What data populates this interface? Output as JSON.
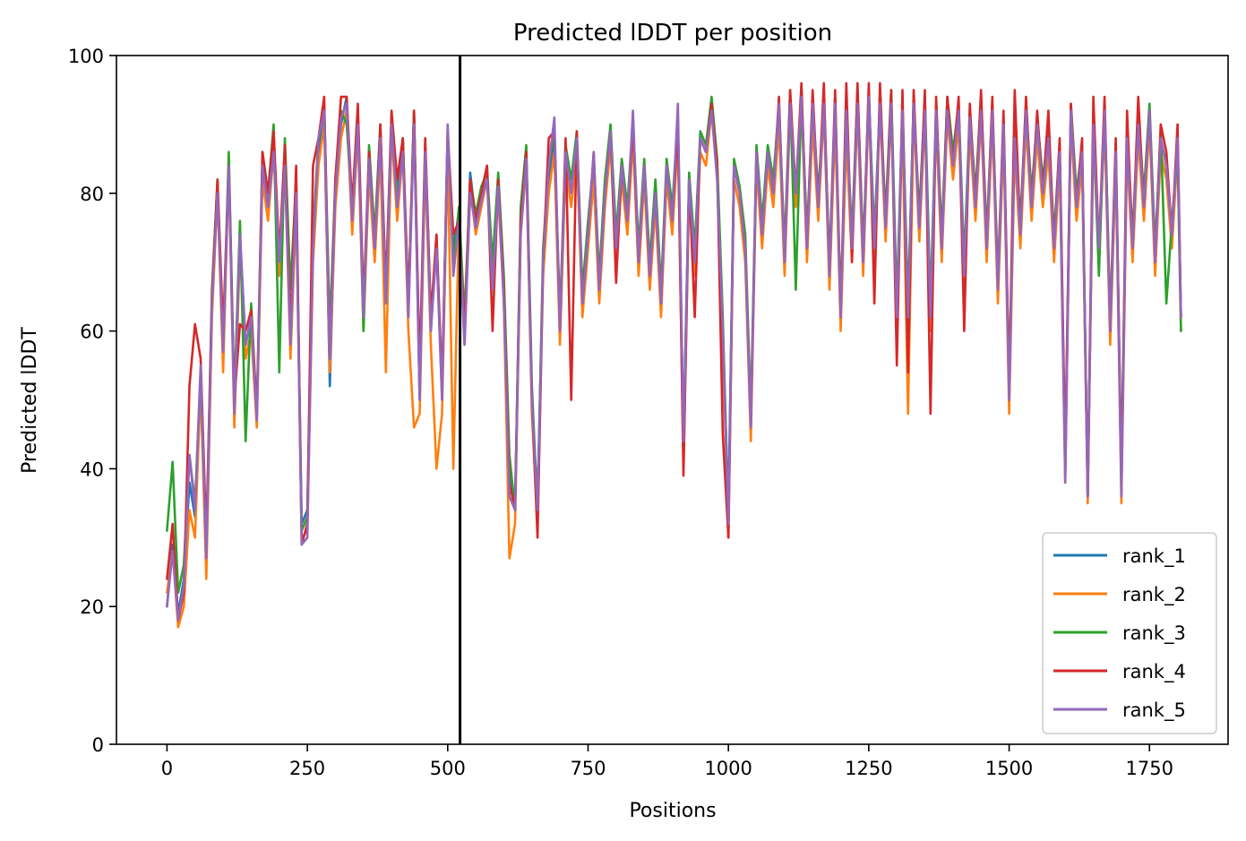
{
  "chart_data": {
    "type": "line",
    "title": "Predicted lDDT per position",
    "xlabel": "Positions",
    "ylabel": "Predicted lDDT",
    "xlim": [
      -90,
      1890
    ],
    "ylim": [
      0,
      100
    ],
    "xticks": [
      0,
      250,
      500,
      750,
      1000,
      1250,
      1500,
      1750
    ],
    "yticks": [
      0,
      20,
      40,
      60,
      80,
      100
    ],
    "grid": false,
    "legend_position": "lower-right",
    "vline_x": 522,
    "x": [
      0,
      10,
      20,
      30,
      40,
      50,
      60,
      70,
      80,
      90,
      100,
      110,
      120,
      130,
      140,
      150,
      160,
      170,
      180,
      190,
      200,
      210,
      220,
      230,
      240,
      250,
      260,
      270,
      280,
      290,
      300,
      310,
      320,
      330,
      340,
      350,
      360,
      370,
      380,
      390,
      400,
      410,
      420,
      430,
      440,
      450,
      460,
      470,
      480,
      490,
      500,
      510,
      520,
      530,
      540,
      550,
      560,
      570,
      580,
      590,
      600,
      610,
      620,
      630,
      640,
      650,
      660,
      670,
      680,
      690,
      700,
      710,
      720,
      730,
      740,
      750,
      760,
      770,
      780,
      790,
      800,
      810,
      820,
      830,
      840,
      850,
      860,
      870,
      880,
      890,
      900,
      910,
      920,
      930,
      940,
      950,
      960,
      970,
      980,
      990,
      1000,
      1010,
      1020,
      1030,
      1040,
      1050,
      1060,
      1070,
      1080,
      1090,
      1100,
      1110,
      1120,
      1130,
      1140,
      1150,
      1160,
      1170,
      1180,
      1190,
      1200,
      1210,
      1220,
      1230,
      1240,
      1250,
      1260,
      1270,
      1280,
      1290,
      1300,
      1310,
      1320,
      1330,
      1340,
      1350,
      1360,
      1370,
      1380,
      1390,
      1400,
      1410,
      1420,
      1430,
      1440,
      1450,
      1460,
      1470,
      1480,
      1490,
      1500,
      1510,
      1520,
      1530,
      1540,
      1550,
      1560,
      1570,
      1580,
      1590,
      1600,
      1610,
      1620,
      1630,
      1640,
      1650,
      1660,
      1670,
      1680,
      1690,
      1700,
      1710,
      1720,
      1730,
      1740,
      1750,
      1760,
      1770,
      1780,
      1790,
      1800,
      1806
    ],
    "series": [
      {
        "name": "rank_1",
        "color": "#1f77b4",
        "values": [
          20,
          29,
          19,
          24,
          38,
          33,
          52,
          26,
          64,
          81,
          56,
          85,
          48,
          74,
          58,
          62,
          47,
          84,
          78,
          88,
          70,
          86,
          58,
          80,
          32,
          34,
          72,
          86,
          92,
          52,
          80,
          90,
          94,
          76,
          91,
          62,
          85,
          72,
          89,
          66,
          91,
          78,
          88,
          62,
          92,
          50,
          86,
          60,
          74,
          50,
          88,
          72,
          77,
          60,
          83,
          76,
          80,
          84,
          68,
          82,
          66,
          40,
          35,
          76,
          86,
          50,
          35,
          70,
          82,
          88,
          60,
          86,
          80,
          88,
          64,
          74,
          84,
          66,
          80,
          89,
          72,
          84,
          76,
          90,
          70,
          84,
          68,
          80,
          64,
          84,
          76,
          90,
          42,
          82,
          70,
          88,
          86,
          93,
          84,
          60,
          34,
          84,
          80,
          72,
          46,
          86,
          74,
          86,
          80,
          92,
          70,
          94,
          80,
          95,
          72,
          92,
          78,
          94,
          68,
          93,
          62,
          90,
          72,
          94,
          70,
          95,
          72,
          94,
          75,
          94,
          62,
          92,
          62,
          94,
          75,
          93,
          62,
          92,
          72,
          93,
          84,
          92,
          68,
          91,
          78,
          93,
          72,
          92,
          66,
          90,
          50,
          88,
          74,
          92,
          78,
          90,
          80,
          88,
          72,
          86,
          40,
          92,
          78,
          86,
          36,
          90,
          72,
          92,
          60,
          86,
          40,
          88,
          72,
          90,
          78,
          92,
          70,
          88,
          84,
          74,
          88,
          62
        ]
      },
      {
        "name": "rank_2",
        "color": "#ff7f0e",
        "values": [
          22,
          28,
          17,
          20,
          34,
          30,
          52,
          24,
          62,
          80,
          54,
          84,
          46,
          72,
          56,
          60,
          46,
          82,
          76,
          86,
          68,
          84,
          56,
          78,
          30,
          31,
          70,
          84,
          90,
          54,
          78,
          88,
          92,
          74,
          89,
          60,
          83,
          70,
          86,
          54,
          89,
          76,
          86,
          60,
          46,
          48,
          84,
          58,
          40,
          48,
          86,
          40,
          76,
          58,
          81,
          74,
          78,
          82,
          66,
          80,
          64,
          27,
          32,
          74,
          84,
          48,
          32,
          68,
          80,
          86,
          58,
          84,
          78,
          86,
          62,
          72,
          82,
          64,
          78,
          87,
          70,
          82,
          74,
          88,
          68,
          82,
          66,
          78,
          62,
          82,
          74,
          88,
          40,
          80,
          68,
          86,
          84,
          92,
          82,
          58,
          30,
          82,
          78,
          70,
          44,
          84,
          72,
          84,
          78,
          90,
          68,
          92,
          78,
          93,
          70,
          90,
          76,
          92,
          66,
          90,
          60,
          88,
          70,
          92,
          68,
          93,
          70,
          92,
          73,
          92,
          60,
          90,
          48,
          92,
          73,
          91,
          60,
          90,
          70,
          91,
          82,
          90,
          66,
          89,
          76,
          91,
          70,
          90,
          64,
          88,
          48,
          86,
          72,
          90,
          76,
          88,
          78,
          86,
          70,
          84,
          38,
          90,
          76,
          84,
          35,
          88,
          70,
          90,
          58,
          84,
          35,
          86,
          70,
          88,
          76,
          90,
          68,
          86,
          82,
          72,
          86,
          60
        ]
      },
      {
        "name": "rank_3",
        "color": "#2ca02c",
        "values": [
          31,
          41,
          22,
          26,
          42,
          35,
          54,
          28,
          66,
          82,
          58,
          86,
          50,
          76,
          44,
          64,
          48,
          86,
          80,
          90,
          54,
          88,
          66,
          82,
          31,
          33,
          74,
          88,
          93,
          60,
          82,
          92,
          90,
          78,
          92,
          60,
          87,
          74,
          90,
          64,
          90,
          80,
          88,
          64,
          92,
          52,
          87,
          62,
          72,
          52,
          89,
          70,
          78,
          62,
          82,
          77,
          81,
          83,
          70,
          83,
          68,
          42,
          34,
          78,
          87,
          52,
          34,
          72,
          84,
          89,
          62,
          87,
          82,
          89,
          66,
          76,
          85,
          68,
          82,
          90,
          74,
          85,
          78,
          91,
          72,
          85,
          70,
          82,
          66,
          85,
          78,
          91,
          44,
          83,
          72,
          89,
          87,
          94,
          85,
          62,
          32,
          85,
          81,
          74,
          48,
          87,
          76,
          87,
          82,
          93,
          72,
          95,
          66,
          94,
          74,
          93,
          80,
          93,
          70,
          94,
          64,
          91,
          74,
          95,
          72,
          94,
          74,
          93,
          77,
          95,
          64,
          93,
          64,
          93,
          77,
          94,
          64,
          93,
          74,
          94,
          86,
          93,
          70,
          92,
          80,
          94,
          74,
          93,
          68,
          91,
          52,
          89,
          76,
          93,
          80,
          91,
          82,
          89,
          74,
          87,
          40,
          93,
          80,
          87,
          36,
          91,
          68,
          93,
          62,
          87,
          38,
          89,
          74,
          91,
          80,
          93,
          72,
          89,
          64,
          76,
          86,
          60
        ]
      },
      {
        "name": "rank_4",
        "color": "#d62728",
        "values": [
          24,
          32,
          18,
          22,
          52,
          61,
          56,
          30,
          65,
          82,
          60,
          84,
          50,
          61,
          60,
          63,
          48,
          86,
          80,
          89,
          71,
          87,
          60,
          84,
          29,
          32,
          84,
          88,
          94,
          56,
          82,
          94,
          94,
          78,
          93,
          64,
          86,
          72,
          90,
          66,
          92,
          82,
          88,
          64,
          92,
          54,
          88,
          62,
          74,
          52,
          89,
          74,
          76,
          60,
          82,
          76,
          80,
          84,
          60,
          82,
          66,
          38,
          34,
          76,
          86,
          50,
          30,
          70,
          88,
          89,
          60,
          88,
          50,
          89,
          64,
          74,
          86,
          66,
          80,
          89,
          67,
          84,
          76,
          90,
          70,
          84,
          68,
          80,
          64,
          84,
          76,
          90,
          39,
          82,
          62,
          88,
          86,
          93,
          84,
          45,
          30,
          84,
          80,
          72,
          46,
          86,
          74,
          86,
          80,
          94,
          70,
          95,
          80,
          96,
          72,
          95,
          78,
          96,
          68,
          95,
          62,
          96,
          70,
          96,
          70,
          96,
          64,
          96,
          75,
          95,
          55,
          95,
          54,
          95,
          75,
          95,
          48,
          94,
          72,
          94,
          84,
          94,
          60,
          93,
          78,
          95,
          72,
          94,
          66,
          92,
          52,
          95,
          74,
          94,
          78,
          92,
          80,
          92,
          72,
          88,
          42,
          93,
          78,
          88,
          36,
          94,
          72,
          94,
          60,
          88,
          38,
          92,
          72,
          94,
          78,
          92,
          70,
          90,
          86,
          74,
          90,
          62
        ]
      },
      {
        "name": "rank_5",
        "color": "#9467bd",
        "values": [
          20,
          28,
          18,
          23,
          42,
          34,
          55,
          27,
          64,
          80,
          57,
          84,
          48,
          74,
          58,
          62,
          47,
          84,
          78,
          86,
          70,
          84,
          58,
          80,
          29,
          30,
          72,
          88,
          92,
          56,
          80,
          91,
          93,
          76,
          90,
          62,
          85,
          72,
          88,
          64,
          90,
          78,
          86,
          62,
          90,
          50,
          86,
          60,
          72,
          50,
          90,
          68,
          76,
          58,
          80,
          75,
          79,
          82,
          66,
          81,
          64,
          36,
          34,
          74,
          85,
          50,
          34,
          70,
          84,
          91,
          60,
          86,
          80,
          88,
          64,
          74,
          86,
          66,
          80,
          89,
          72,
          84,
          76,
          92,
          70,
          84,
          68,
          80,
          64,
          84,
          76,
          93,
          44,
          82,
          70,
          88,
          86,
          92,
          82,
          60,
          32,
          84,
          80,
          72,
          46,
          86,
          74,
          86,
          80,
          93,
          70,
          93,
          80,
          94,
          72,
          93,
          78,
          93,
          68,
          93,
          62,
          92,
          72,
          93,
          70,
          94,
          72,
          93,
          75,
          93,
          62,
          92,
          62,
          93,
          75,
          92,
          62,
          92,
          72,
          92,
          84,
          92,
          68,
          91,
          78,
          92,
          72,
          92,
          66,
          90,
          50,
          88,
          74,
          92,
          78,
          90,
          80,
          88,
          72,
          86,
          38,
          92,
          78,
          86,
          36,
          90,
          72,
          92,
          60,
          86,
          36,
          88,
          72,
          90,
          78,
          92,
          70,
          88,
          84,
          74,
          88,
          62
        ]
      }
    ]
  }
}
